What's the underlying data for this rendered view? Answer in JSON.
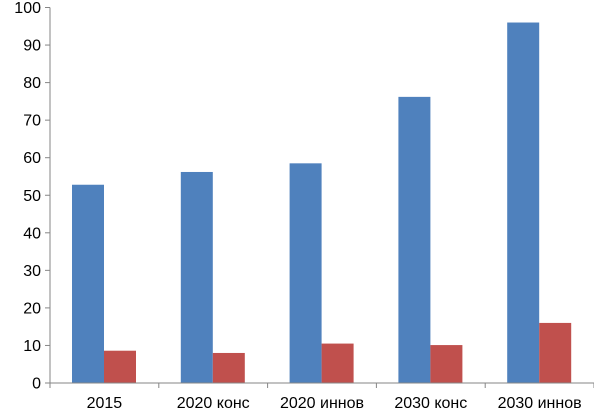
{
  "chart_data": {
    "type": "bar",
    "title": "",
    "xlabel": "",
    "ylabel": "",
    "categories": [
      "2015",
      "2020 конс",
      "2020 иннов",
      "2030 конс",
      "2030 иннов"
    ],
    "series": [
      {
        "values": [
          52.8,
          56.2,
          58.5,
          76.2,
          96.0
        ],
        "color": "#4F81BD"
      },
      {
        "values": [
          8.6,
          8.0,
          10.5,
          10.1,
          16.0
        ],
        "color": "#C0504D"
      }
    ],
    "ylim": [
      0,
      100
    ],
    "yticks": [
      0,
      10,
      20,
      30,
      40,
      50,
      60,
      70,
      80,
      90,
      100
    ],
    "grid": false,
    "legend": "none"
  }
}
